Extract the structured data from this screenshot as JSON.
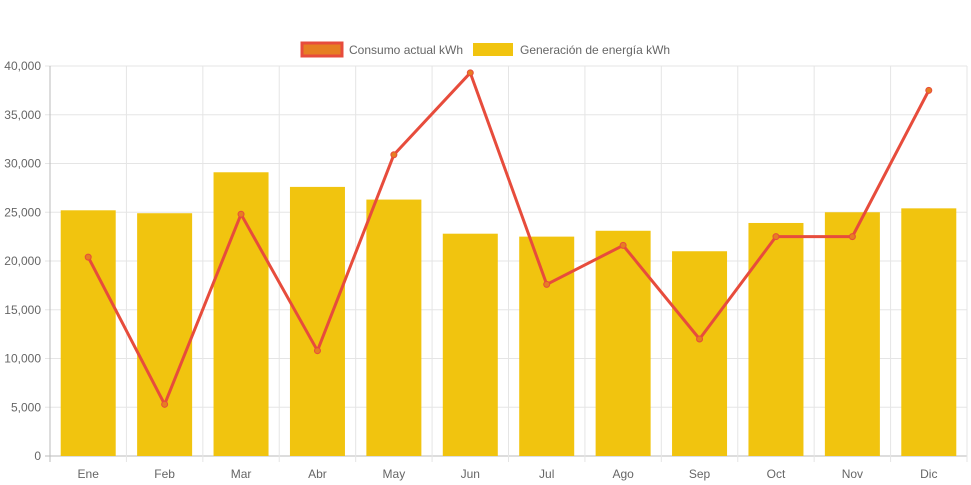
{
  "chart_data": {
    "type": "bar",
    "categories": [
      "Ene",
      "Feb",
      "Mar",
      "Abr",
      "May",
      "Jun",
      "Jul",
      "Ago",
      "Sep",
      "Oct",
      "Nov",
      "Dic"
    ],
    "series": [
      {
        "name": "Consumo actual kWh",
        "type": "line",
        "color": "#e74c3c",
        "fill": "#e67e22",
        "values": [
          20400,
          5300,
          24800,
          10800,
          30900,
          39300,
          17600,
          21600,
          12000,
          22500,
          22500,
          37500
        ]
      },
      {
        "name": "Generación de energía kWh",
        "type": "bar",
        "color": "#f1c40f",
        "values": [
          25200,
          24900,
          29100,
          27600,
          26300,
          22800,
          22500,
          23100,
          21000,
          23900,
          25000,
          25400
        ]
      }
    ],
    "ylim": [
      0,
      40000
    ],
    "yticks": [
      0,
      5000,
      10000,
      15000,
      20000,
      25000,
      30000,
      35000,
      40000
    ],
    "ytick_labels": [
      "0",
      "5,000",
      "10,000",
      "15,000",
      "20,000",
      "25,000",
      "30,000",
      "35,000",
      "40,000"
    ],
    "grid": true,
    "legend": "top-center",
    "title": "",
    "xlabel": "",
    "ylabel": ""
  }
}
